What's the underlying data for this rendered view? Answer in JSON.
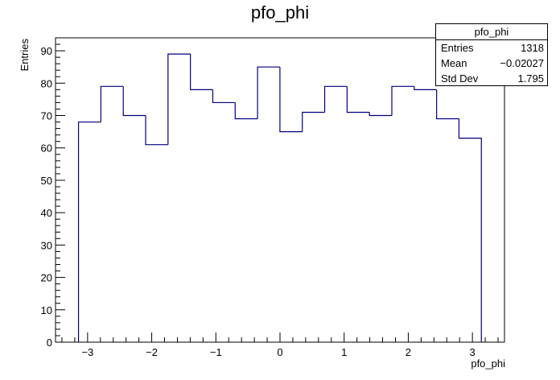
{
  "chart_data": {
    "type": "bar",
    "title": "pfo_phi",
    "xlabel": "pfo_phi",
    "ylabel": "Entries",
    "xlim": [
      -3.5,
      3.5
    ],
    "ylim": [
      0,
      94
    ],
    "bin_edges": [
      -3.1416,
      -2.7927,
      -2.4437,
      -2.0948,
      -1.7458,
      -1.3969,
      -1.0479,
      -0.699,
      -0.35,
      -0.0011,
      0.3479,
      0.6968,
      1.0458,
      1.3947,
      1.7437,
      2.0926,
      2.4416,
      2.7905,
      3.1395
    ],
    "series": [
      {
        "values": [
          68,
          79,
          70,
          61,
          89,
          78,
          74,
          69,
          85,
          65,
          71,
          79,
          71,
          70,
          79,
          78,
          69,
          63
        ]
      }
    ],
    "x_ticks": [
      "−3",
      "−2",
      "−1",
      "0",
      "1",
      "2",
      "3"
    ],
    "x_tick_values": [
      -3,
      -2,
      -1,
      0,
      1,
      2,
      3
    ],
    "y_ticks": [
      "0",
      "10",
      "20",
      "30",
      "40",
      "50",
      "60",
      "70",
      "80",
      "90"
    ],
    "y_tick_values": [
      0,
      10,
      20,
      30,
      40,
      50,
      60,
      70,
      80,
      90
    ],
    "grid": false,
    "legend": "top-right",
    "line_color": "#000080"
  },
  "stats_box": {
    "title": "pfo_phi",
    "rows": [
      {
        "label": "Entries",
        "value": "1318"
      },
      {
        "label": "Mean",
        "value": "−0.02027"
      },
      {
        "label": "Std Dev",
        "value": "1.795"
      }
    ]
  }
}
